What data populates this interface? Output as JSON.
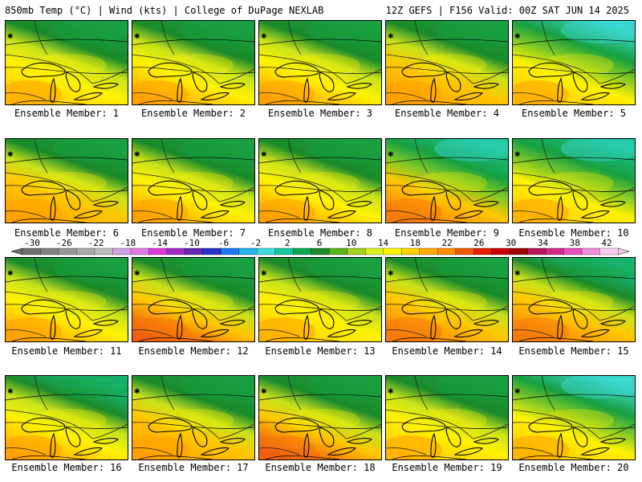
{
  "header": {
    "left": "850mb Temp (°C) | Wind (kts) | College of DuPage NEXLAB",
    "right": "12Z GEFS | F156 Valid: 00Z SAT JUN 14 2025"
  },
  "member_label_prefix": "Ensemble Member: ",
  "members": [
    {
      "label": "Ensemble Member: 1",
      "warm": 0.45,
      "cool": 0.45
    },
    {
      "label": "Ensemble Member: 2",
      "warm": 0.5,
      "cool": 0.4
    },
    {
      "label": "Ensemble Member: 3",
      "warm": 0.55,
      "cool": 0.35
    },
    {
      "label": "Ensemble Member: 4",
      "warm": 0.6,
      "cool": 0.35
    },
    {
      "label": "Ensemble Member: 5",
      "warm": 0.3,
      "cool": 0.8
    },
    {
      "label": "Ensemble Member: 6",
      "warm": 0.6,
      "cool": 0.4
    },
    {
      "label": "Ensemble Member: 7",
      "warm": 0.55,
      "cool": 0.4
    },
    {
      "label": "Ensemble Member: 8",
      "warm": 0.5,
      "cool": 0.45
    },
    {
      "label": "Ensemble Member: 9",
      "warm": 0.65,
      "cool": 0.65
    },
    {
      "label": "Ensemble Member: 10",
      "warm": 0.25,
      "cool": 0.7
    },
    {
      "label": "Ensemble Member: 11",
      "warm": 0.5,
      "cool": 0.45
    },
    {
      "label": "Ensemble Member: 12",
      "warm": 0.75,
      "cool": 0.35
    },
    {
      "label": "Ensemble Member: 13",
      "warm": 0.45,
      "cool": 0.5
    },
    {
      "label": "Ensemble Member: 14",
      "warm": 0.65,
      "cool": 0.4
    },
    {
      "label": "Ensemble Member: 15",
      "warm": 0.7,
      "cool": 0.6
    },
    {
      "label": "Ensemble Member: 16",
      "warm": 0.55,
      "cool": 0.55
    },
    {
      "label": "Ensemble Member: 17",
      "warm": 0.6,
      "cool": 0.4
    },
    {
      "label": "Ensemble Member: 18",
      "warm": 0.75,
      "cool": 0.4
    },
    {
      "label": "Ensemble Member: 19",
      "warm": 0.45,
      "cool": 0.4
    },
    {
      "label": "Ensemble Member: 20",
      "warm": 0.3,
      "cool": 0.8
    }
  ],
  "colorbar": {
    "labels": [
      "-30",
      "-26",
      "-22",
      "-18",
      "-14",
      "-10",
      "-6",
      "-2",
      "2",
      "6",
      "10",
      "14",
      "18",
      "22",
      "26",
      "30",
      "34",
      "38",
      "42"
    ],
    "colors": [
      "#6e6e6e",
      "#828282",
      "#969696",
      "#aaaaaa",
      "#bebebe",
      "#d2a0e6",
      "#e678e6",
      "#dc3cdc",
      "#a028c8",
      "#6428b4",
      "#2832c8",
      "#1e78f0",
      "#28b4f0",
      "#3cdcdc",
      "#14c8a0",
      "#12a450",
      "#1e8c28",
      "#5ab41e",
      "#a0d21e",
      "#dcf01e",
      "#fff200",
      "#ffd200",
      "#ffaa00",
      "#ff8c00",
      "#f05a00",
      "#e61e00",
      "#c80000",
      "#a00000",
      "#b4145a",
      "#d2288c",
      "#e650be",
      "#f08cdc",
      "#fac8f0"
    ],
    "palette": {
      "cyan": "#3ad8d0",
      "teal": "#16c28a",
      "green": "#18a040",
      "dkgreen": "#1a8a2a",
      "ltgreen": "#7cc828",
      "yellowgreen": "#c8e21c",
      "yellow": "#fff200",
      "ltorange": "#ffc800",
      "orange": "#ffa000",
      "dkorange": "#f57a0a",
      "red": "#eb3c14"
    }
  }
}
